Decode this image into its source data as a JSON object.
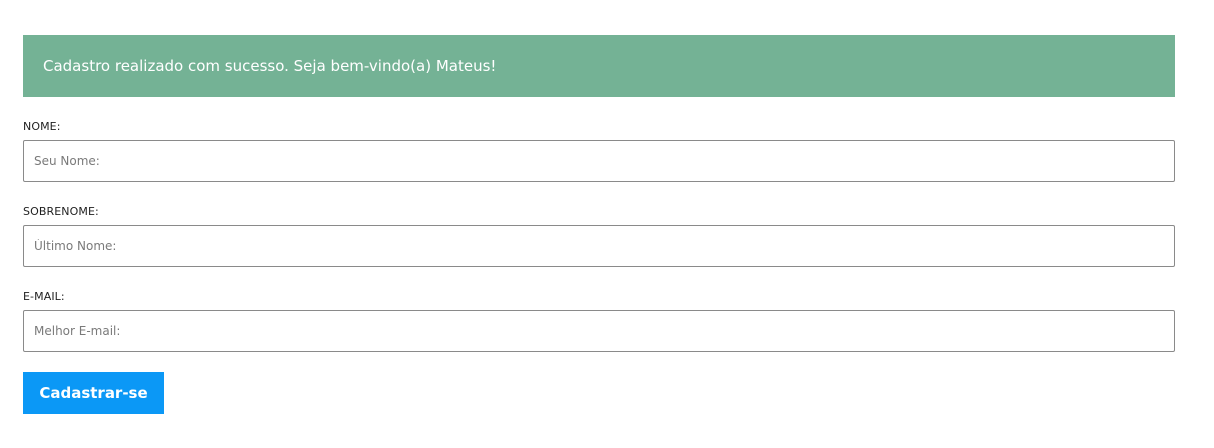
{
  "alert": {
    "message": "Cadastro realizado com sucesso. Seja bem-vindo(a) Mateus!"
  },
  "form": {
    "first_name": {
      "label": "NOME:",
      "placeholder": "Seu Nome:",
      "value": ""
    },
    "last_name": {
      "label": "SOBRENOME:",
      "placeholder": "Último Nome:",
      "value": ""
    },
    "email": {
      "label": "E-MAIL:",
      "placeholder": "Melhor E-mail:",
      "value": ""
    },
    "submit_label": "Cadastrar-se"
  },
  "colors": {
    "alert_background": "#74b295",
    "button_background": "#0b98f6"
  }
}
